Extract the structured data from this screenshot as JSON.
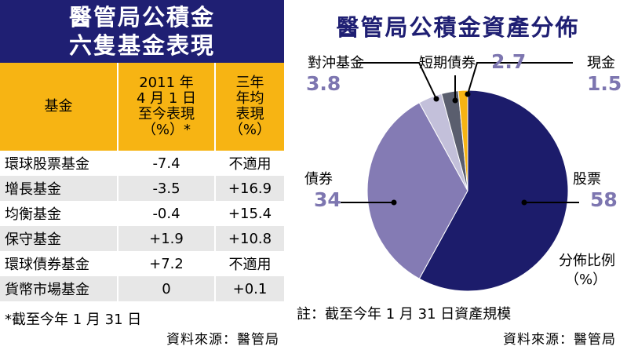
{
  "left_panel": {
    "title_line1": "醫管局公積金",
    "title_line2": "六隻基金表現",
    "columns": {
      "fund": "基金",
      "since_2011": [
        "2011 年",
        "4 月 1 日",
        "至今表現",
        "（%）*"
      ],
      "three_year": [
        "三年",
        "年均",
        "表現",
        "（%）"
      ]
    },
    "rows": [
      {
        "fund": "環球股票基金",
        "since_2011": "-7.4",
        "three_year": "不適用"
      },
      {
        "fund": "增長基金",
        "since_2011": "-3.5",
        "three_year": "+16.9"
      },
      {
        "fund": "均衡基金",
        "since_2011": "-0.4",
        "three_year": "+15.4"
      },
      {
        "fund": "保守基金",
        "since_2011": "+1.9",
        "three_year": "+10.8"
      },
      {
        "fund": "環球債券基金",
        "since_2011": "+7.2",
        "three_year": "不適用"
      },
      {
        "fund": "貨幣市場基金",
        "since_2011": "0",
        "three_year": "+0.1"
      }
    ],
    "footnote": "*截至今年 1 月 31 日",
    "source": "資料來源：醫管局"
  },
  "right_panel": {
    "title": "醫管局公積金資產分佈",
    "unit_label_line1": "分佈比例",
    "unit_label_line2": "（%）",
    "note": "註：截至今年 1 月 31 日資產規模",
    "source": "資料來源：醫管局"
  },
  "chart_data": {
    "type": "pie",
    "title": "醫管局公積金資產分佈",
    "unit": "%",
    "slices": [
      {
        "label": "股票",
        "value": 58,
        "display": "58",
        "color": "#1c1c6b"
      },
      {
        "label": "債券",
        "value": 34,
        "display": "34",
        "color": "#847bb4"
      },
      {
        "label": "對沖基金",
        "value": 3.8,
        "display": "3.8",
        "color": "#c3c0da"
      },
      {
        "label": "短期債券",
        "value": 2.7,
        "display": "2.7",
        "color": "#5a5e6e"
      },
      {
        "label": "現金",
        "value": 1.5,
        "display": "1.5",
        "color": "#f7b413"
      }
    ]
  }
}
